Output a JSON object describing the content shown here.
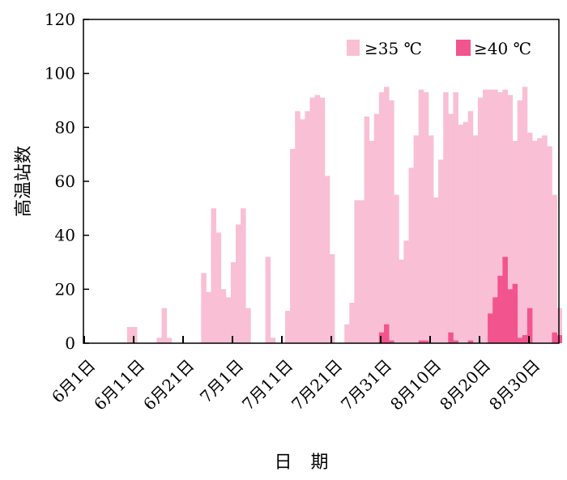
{
  "chart_data": {
    "type": "bar",
    "xlabel": "日 期",
    "ylabel": "高温站数",
    "ylim": [
      0,
      120
    ],
    "yticks": [
      0,
      20,
      40,
      60,
      80,
      100,
      120
    ],
    "xtick_labels": [
      "6月1日",
      "6月11日",
      "6月21日",
      "7月1日",
      "7月11日",
      "7月21日",
      "7月31日",
      "8月10日",
      "8月20日",
      "8月30日"
    ],
    "legend_position": "top-right",
    "grid": false,
    "series": [
      {
        "name": "≥35 ℃",
        "color": "#f9bfd5",
        "values": [
          0,
          0,
          0,
          0,
          0,
          0,
          0,
          0,
          6,
          6,
          0,
          0,
          0,
          0,
          2,
          13,
          2,
          0,
          0,
          0,
          0,
          0,
          0,
          26,
          19,
          50,
          41,
          20,
          17,
          30,
          44,
          50,
          13,
          0,
          0,
          0,
          32,
          2,
          0,
          0,
          12,
          72,
          86,
          83,
          86,
          91,
          92,
          91,
          62,
          33,
          0,
          0,
          7,
          15,
          53,
          53,
          84,
          75,
          85,
          93,
          95,
          90,
          55,
          31,
          38,
          65,
          77,
          94,
          93,
          77,
          54,
          68,
          93,
          85,
          93,
          81,
          82,
          86,
          77,
          91,
          94,
          94,
          94,
          93,
          94,
          92,
          75,
          90,
          95,
          78,
          75,
          76,
          77,
          73,
          55,
          13
        ]
      },
      {
        "name": "≥40 ℃",
        "color": "#f2548e",
        "values": [
          0,
          0,
          0,
          0,
          0,
          0,
          0,
          0,
          0,
          0,
          0,
          0,
          0,
          0,
          0,
          0,
          0,
          0,
          0,
          0,
          0,
          0,
          0,
          0,
          0,
          0,
          0,
          0,
          0,
          0,
          0,
          0,
          0,
          0,
          0,
          0,
          0,
          0,
          0,
          0,
          0,
          0,
          0,
          0,
          0,
          0,
          0,
          0,
          0,
          0,
          0,
          0,
          0,
          0,
          0,
          0,
          0,
          0,
          0,
          4,
          7,
          1,
          0,
          0,
          0,
          0,
          0,
          1,
          1,
          0,
          0,
          0,
          0,
          4,
          1,
          0,
          0,
          1,
          0,
          0,
          0,
          11,
          17,
          25,
          32,
          20,
          22,
          2,
          3,
          13,
          0,
          0,
          0,
          0,
          4,
          3
        ]
      }
    ]
  }
}
